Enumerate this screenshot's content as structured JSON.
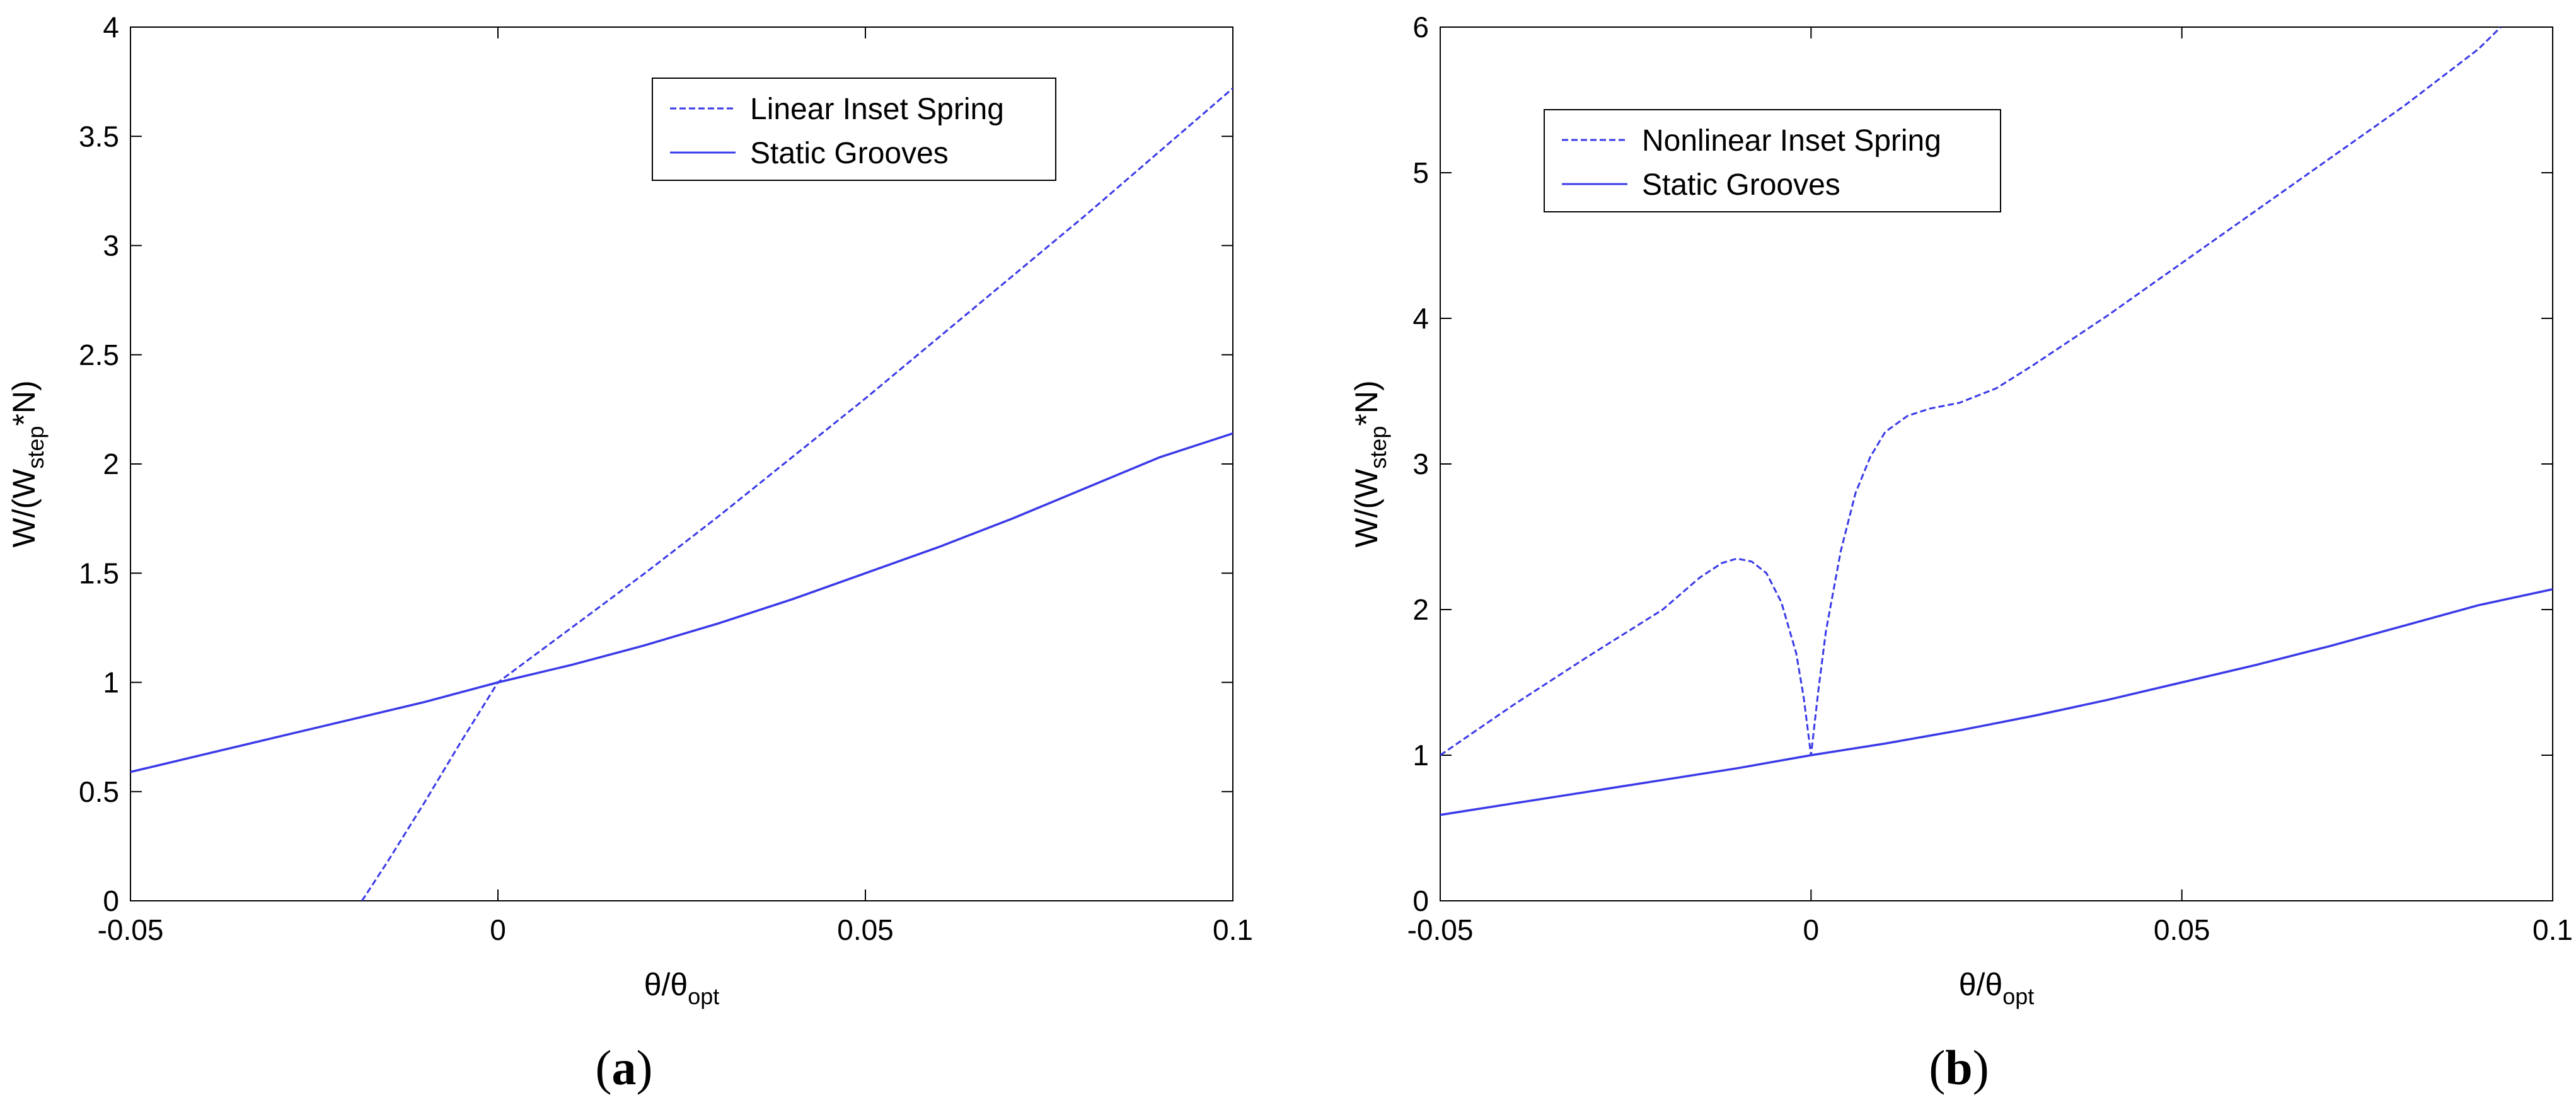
{
  "colors": {
    "line": "#3a3ae8",
    "axis": "#000000",
    "background": "#ffffff"
  },
  "chart_data": [
    {
      "type": "line",
      "panel_label": "a",
      "xlabel": {
        "main": "θ/θ",
        "sub": "opt"
      },
      "ylabel": {
        "pre": "W/(W",
        "sub": "step",
        "post": "*N)"
      },
      "xlim": [
        -0.05,
        0.1
      ],
      "ylim": [
        0,
        4
      ],
      "xticks": [
        -0.05,
        0,
        0.05,
        0.1
      ],
      "xtick_labels": [
        "-0.05",
        "0",
        "0.05",
        "0.1"
      ],
      "yticks": [
        0,
        0.5,
        1,
        1.5,
        2,
        2.5,
        3,
        3.5,
        4
      ],
      "ytick_labels": [
        "0",
        "0.5",
        "1",
        "1.5",
        "2",
        "2.5",
        "3",
        "3.5",
        "4"
      ],
      "grid": false,
      "legend_position": "top-center",
      "series": [
        {
          "name": "Linear Inset Spring",
          "style": "dashed",
          "x": [
            -0.0185,
            -0.015,
            -0.01,
            -0.005,
            0,
            0.01,
            0.02,
            0.03,
            0.04,
            0.05,
            0.06,
            0.07,
            0.08,
            0.09,
            0.1
          ],
          "y": [
            0,
            0.18,
            0.45,
            0.73,
            1.0,
            1.25,
            1.5,
            1.76,
            2.03,
            2.3,
            2.58,
            2.86,
            3.14,
            3.43,
            3.72
          ]
        },
        {
          "name": "Static Grooves",
          "style": "solid",
          "x": [
            -0.05,
            -0.04,
            -0.03,
            -0.02,
            -0.01,
            0,
            0.01,
            0.02,
            0.03,
            0.04,
            0.05,
            0.06,
            0.07,
            0.08,
            0.09,
            0.1
          ],
          "y": [
            0.59,
            0.67,
            0.75,
            0.83,
            0.91,
            1.0,
            1.08,
            1.17,
            1.27,
            1.38,
            1.5,
            1.62,
            1.75,
            1.89,
            2.03,
            2.14
          ]
        }
      ]
    },
    {
      "type": "line",
      "panel_label": "b",
      "xlabel": {
        "main": "θ/θ",
        "sub": "opt"
      },
      "ylabel": {
        "pre": "W/(W",
        "sub": "step",
        "post": "*N)"
      },
      "xlim": [
        -0.05,
        0.1
      ],
      "ylim": [
        0,
        6
      ],
      "xticks": [
        -0.05,
        0,
        0.05,
        0.1
      ],
      "xtick_labels": [
        "-0.05",
        "0",
        "0.05",
        "0.1"
      ],
      "yticks": [
        0,
        1,
        2,
        3,
        4,
        5,
        6
      ],
      "ytick_labels": [
        "0",
        "1",
        "2",
        "3",
        "4",
        "5",
        "6"
      ],
      "grid": false,
      "legend_position": "top-left",
      "series": [
        {
          "name": "Nonlinear Inset Spring",
          "style": "dashed",
          "x": [
            -0.05,
            -0.04,
            -0.03,
            -0.02,
            -0.015,
            -0.012,
            -0.01,
            -0.008,
            -0.006,
            -0.004,
            -0.002,
            -0.001,
            0,
            0.001,
            0.002,
            0.004,
            0.006,
            0.008,
            0.01,
            0.013,
            0.016,
            0.02,
            0.025,
            0.03,
            0.04,
            0.05,
            0.06,
            0.07,
            0.08,
            0.09,
            0.093
          ],
          "y": [
            1.0,
            1.35,
            1.68,
            2.0,
            2.22,
            2.32,
            2.35,
            2.33,
            2.25,
            2.05,
            1.7,
            1.4,
            1.0,
            1.45,
            1.85,
            2.4,
            2.8,
            3.05,
            3.22,
            3.33,
            3.38,
            3.42,
            3.52,
            3.68,
            4.02,
            4.38,
            4.74,
            5.1,
            5.46,
            5.85,
            6.0
          ]
        },
        {
          "name": "Static Grooves",
          "style": "solid",
          "x": [
            -0.05,
            -0.04,
            -0.03,
            -0.02,
            -0.01,
            0,
            0.01,
            0.02,
            0.03,
            0.04,
            0.05,
            0.06,
            0.07,
            0.08,
            0.09,
            0.1
          ],
          "y": [
            0.59,
            0.67,
            0.75,
            0.83,
            0.91,
            1.0,
            1.08,
            1.17,
            1.27,
            1.38,
            1.5,
            1.62,
            1.75,
            1.89,
            2.03,
            2.14
          ]
        }
      ]
    }
  ]
}
